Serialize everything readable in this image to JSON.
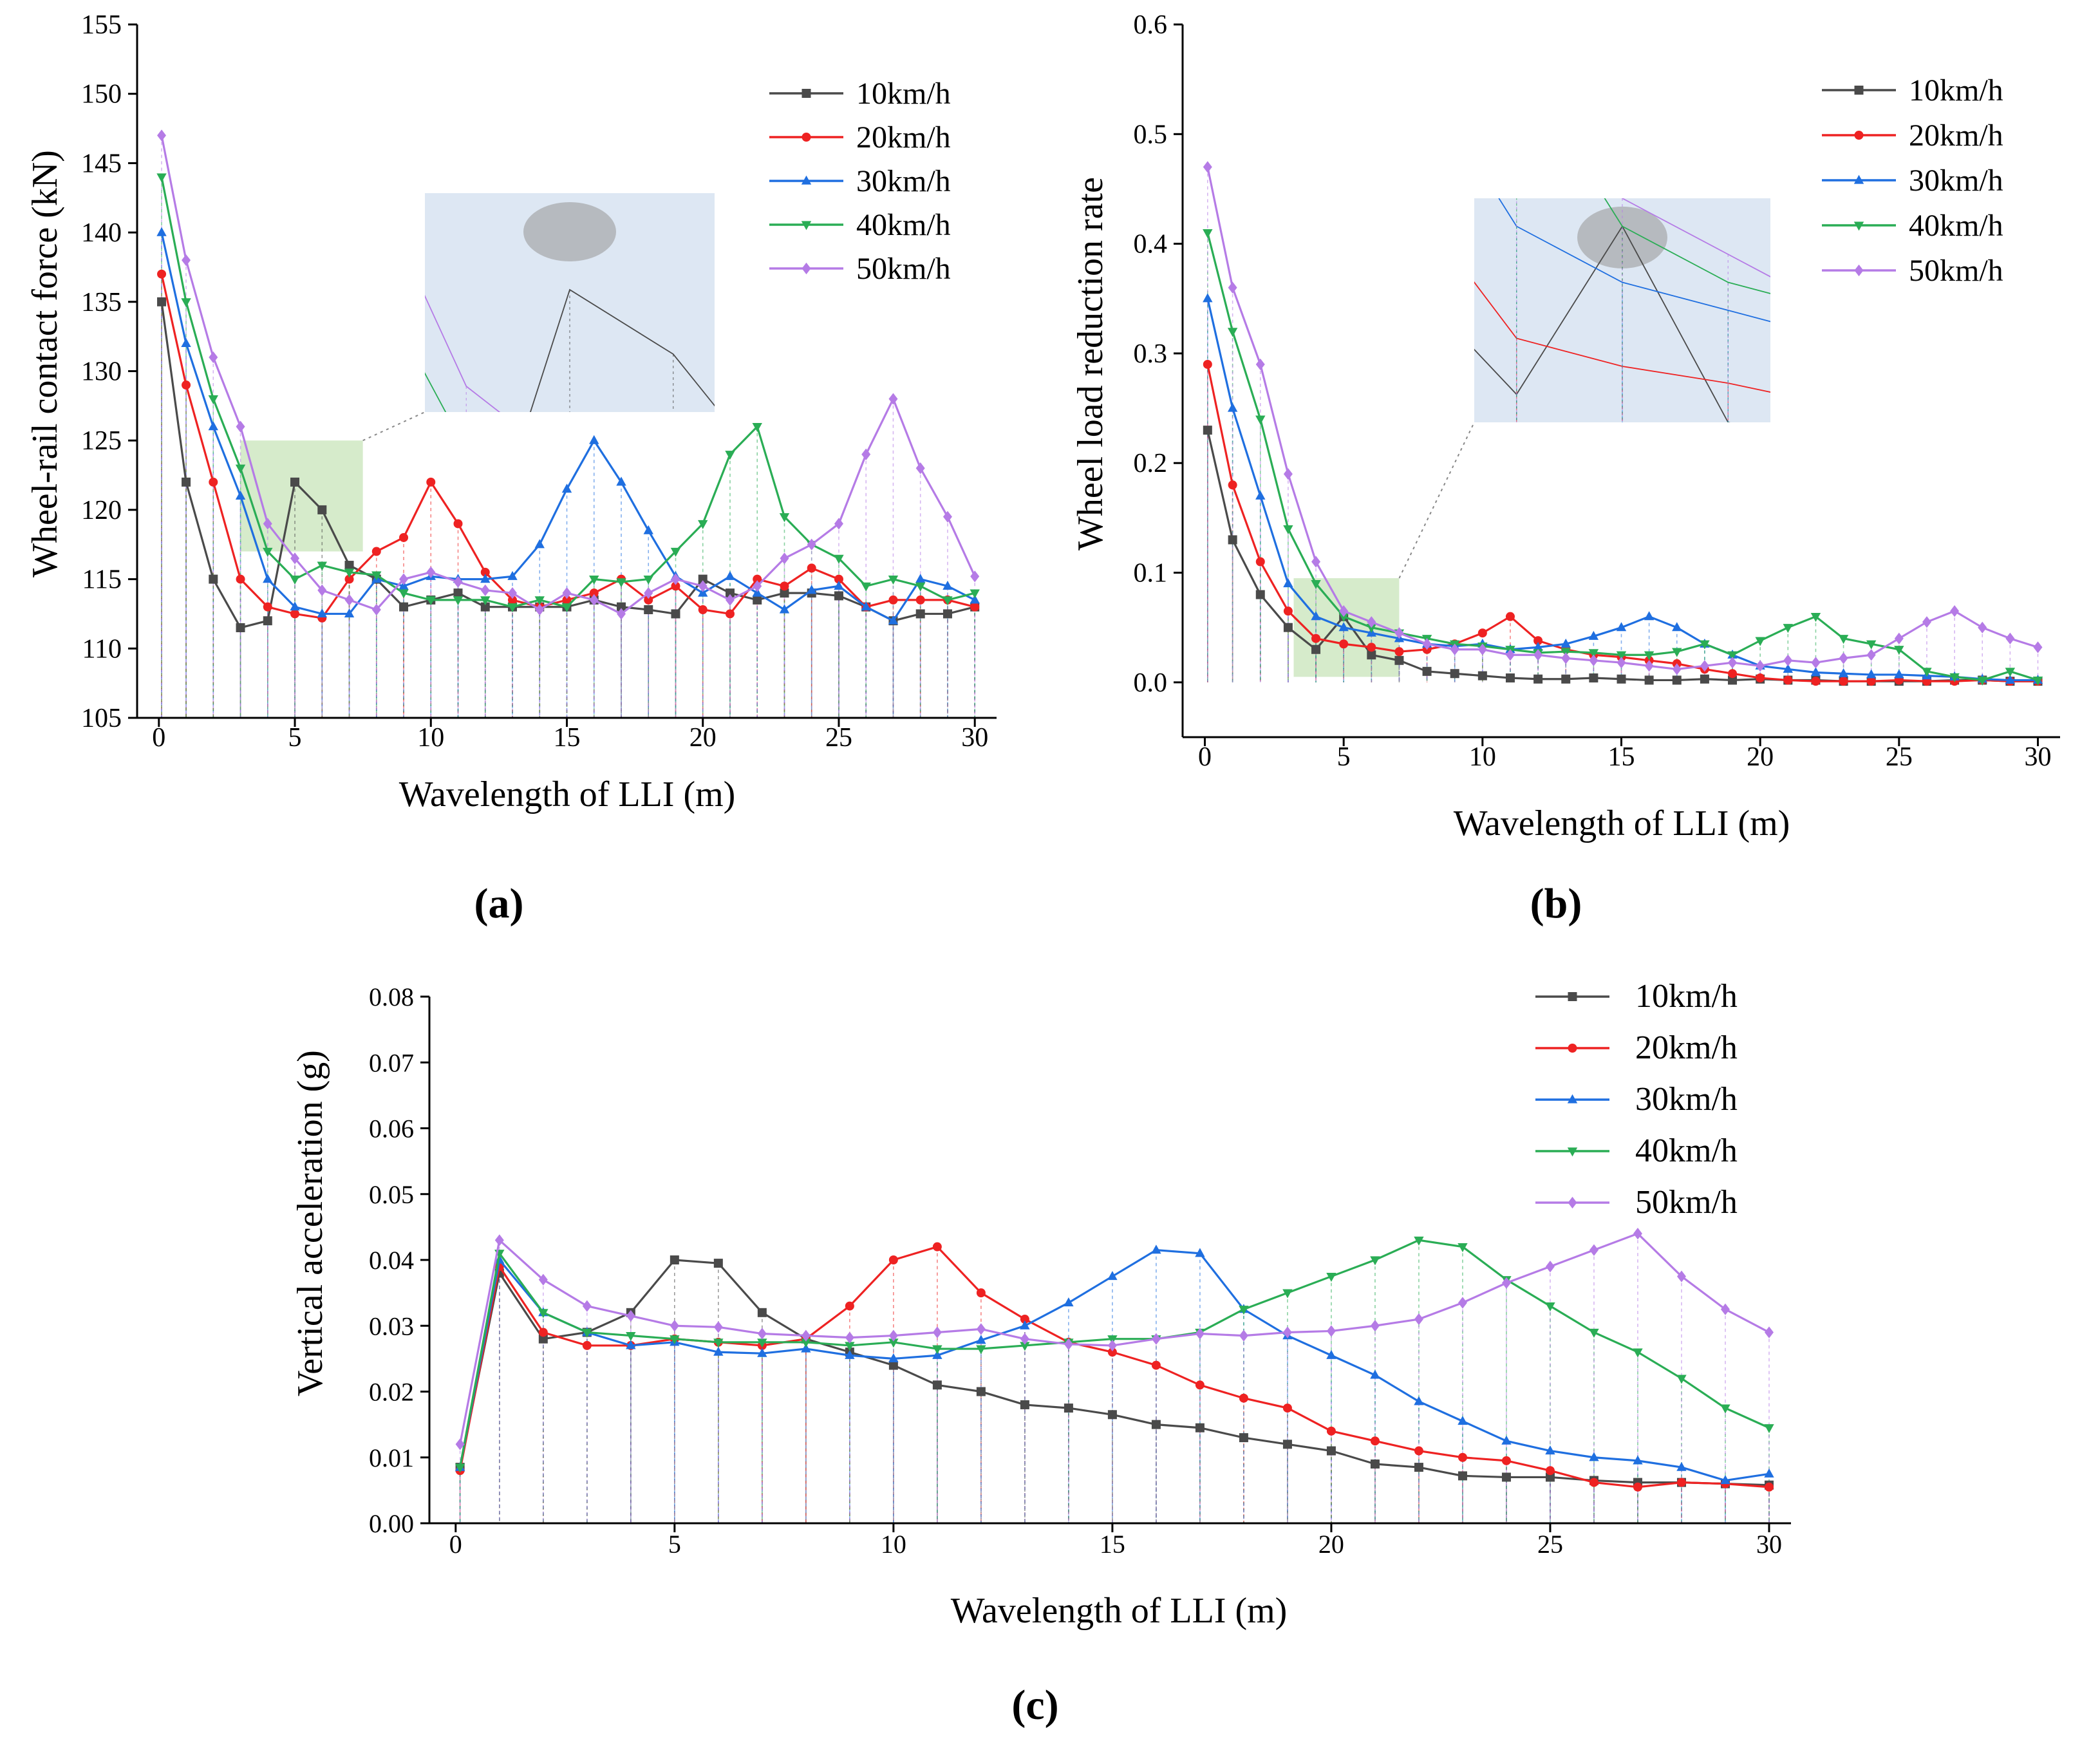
{
  "colors": {
    "10km/h": "#4a4a4a",
    "20km/h": "#ee2222",
    "30km/h": "#1f6fe0",
    "40km/h": "#2aad55",
    "50km/h": "#b57be6",
    "inset_bg": "#dde7f3",
    "highlight_green": "#cfe8c2",
    "oval": "#9d9d9d"
  },
  "chart_data": [
    {
      "type": "line",
      "panel_label": "(a)",
      "xlabel": "Wavelength of LLI (m)",
      "ylabel": "Wheel-rail contact force (kN)",
      "xlim": [
        -0.8,
        30.8
      ],
      "ylim": [
        105,
        155
      ],
      "xticks": [
        "0",
        "5",
        "10",
        "15",
        "20",
        "25",
        "30"
      ],
      "yticks": [
        "105",
        "110",
        "115",
        "120",
        "125",
        "130",
        "135",
        "140",
        "145",
        "150",
        "155"
      ],
      "legend": [
        "10km/h",
        "20km/h",
        "30km/h",
        "40km/h",
        "50km/h"
      ],
      "x": [
        0.1,
        1,
        2,
        3,
        4,
        5,
        6,
        7,
        8,
        9,
        10,
        11,
        12,
        13,
        14,
        15,
        16,
        17,
        18,
        19,
        20,
        21,
        22,
        23,
        24,
        25,
        26,
        27,
        28,
        29,
        30
      ],
      "series": [
        {
          "name": "10km/h",
          "marker": "square",
          "values": [
            135,
            122,
            115,
            111.5,
            112,
            122,
            120,
            116,
            115,
            113,
            113.5,
            114,
            113,
            113,
            113,
            113,
            113.5,
            113,
            112.8,
            112.5,
            115,
            114,
            113.5,
            114,
            114,
            113.8,
            113,
            112,
            112.5,
            112.5,
            113
          ]
        },
        {
          "name": "20km/h",
          "marker": "circle",
          "values": [
            137,
            129,
            122,
            115,
            113,
            112.5,
            112.2,
            115,
            117,
            118,
            122,
            119,
            115.5,
            113.5,
            113,
            113.5,
            114,
            115,
            113.5,
            114.5,
            112.8,
            112.5,
            115,
            114.5,
            115.8,
            115,
            113,
            113.5,
            113.5,
            113.5,
            113
          ]
        },
        {
          "name": "30km/h",
          "marker": "triangle-up",
          "values": [
            140,
            132,
            126,
            121,
            115,
            113,
            112.5,
            112.5,
            115,
            114.5,
            115.2,
            115,
            115,
            115.2,
            117.5,
            121.5,
            125,
            122,
            118.5,
            115.2,
            114,
            115.2,
            114,
            112.8,
            114.2,
            114.5,
            113,
            112,
            115,
            114.5,
            113.5
          ]
        },
        {
          "name": "40km/h",
          "marker": "triangle-down",
          "values": [
            144,
            135,
            128,
            123,
            117,
            115,
            116,
            115.5,
            115.3,
            114,
            113.5,
            113.5,
            113.5,
            113,
            113.5,
            113,
            115,
            114.8,
            115,
            117,
            119,
            124,
            126,
            119.5,
            117.5,
            116.5,
            114.5,
            115,
            114.5,
            113.5,
            114
          ]
        },
        {
          "name": "50km/h",
          "marker": "diamond",
          "values": [
            147,
            138,
            131,
            126,
            119,
            116.5,
            114.2,
            113.5,
            112.8,
            115,
            115.5,
            114.8,
            114.2,
            114,
            112.8,
            114,
            113.5,
            112.5,
            114,
            115,
            114.5,
            113.5,
            114.5,
            116.5,
            117.5,
            119,
            124,
            128,
            123,
            119.5,
            115.2
          ]
        }
      ]
    },
    {
      "type": "line",
      "panel_label": "(b)",
      "xlabel": "Wavelength of LLI (m)",
      "ylabel": "Wheel load reduction rate",
      "xlim": [
        -0.8,
        30.8
      ],
      "ylim": [
        -0.05,
        0.6
      ],
      "xticks": [
        "0",
        "5",
        "10",
        "15",
        "20",
        "25",
        "30"
      ],
      "yticks": [
        "0.0",
        "0.1",
        "0.2",
        "0.3",
        "0.4",
        "0.5",
        "0.6"
      ],
      "legend": [
        "10km/h",
        "20km/h",
        "30km/h",
        "40km/h",
        "50km/h"
      ],
      "x": [
        0.1,
        1,
        2,
        3,
        4,
        5,
        6,
        7,
        8,
        9,
        10,
        11,
        12,
        13,
        14,
        15,
        16,
        17,
        18,
        19,
        20,
        21,
        22,
        23,
        24,
        25,
        26,
        27,
        28,
        29,
        30
      ],
      "series": [
        {
          "name": "10km/h",
          "marker": "square",
          "values": [
            0.23,
            0.13,
            0.08,
            0.05,
            0.03,
            0.06,
            0.025,
            0.02,
            0.01,
            0.008,
            0.006,
            0.004,
            0.003,
            0.003,
            0.004,
            0.003,
            0.002,
            0.002,
            0.003,
            0.002,
            0.003,
            0.002,
            0.002,
            0.001,
            0.001,
            0.001,
            0.001,
            0.002,
            0.002,
            0.001,
            0.001
          ]
        },
        {
          "name": "20km/h",
          "marker": "circle",
          "values": [
            0.29,
            0.18,
            0.11,
            0.065,
            0.04,
            0.035,
            0.032,
            0.028,
            0.03,
            0.035,
            0.045,
            0.06,
            0.038,
            0.03,
            0.025,
            0.023,
            0.02,
            0.017,
            0.012,
            0.008,
            0.004,
            0.002,
            0.001,
            0.001,
            0.001,
            0.002,
            0.001,
            0.001,
            0.002,
            0.001,
            0.001
          ]
        },
        {
          "name": "30km/h",
          "marker": "triangle-up",
          "values": [
            0.35,
            0.25,
            0.17,
            0.09,
            0.06,
            0.05,
            0.045,
            0.04,
            0.035,
            0.033,
            0.035,
            0.03,
            0.032,
            0.035,
            0.042,
            0.05,
            0.06,
            0.05,
            0.035,
            0.025,
            0.015,
            0.012,
            0.009,
            0.008,
            0.007,
            0.007,
            0.006,
            0.005,
            0.003,
            0.002,
            0.002
          ]
        },
        {
          "name": "40km/h",
          "marker": "triangle-down",
          "values": [
            0.41,
            0.32,
            0.24,
            0.14,
            0.09,
            0.06,
            0.05,
            0.045,
            0.04,
            0.035,
            0.033,
            0.03,
            0.027,
            0.028,
            0.027,
            0.025,
            0.025,
            0.028,
            0.035,
            0.025,
            0.038,
            0.05,
            0.06,
            0.04,
            0.035,
            0.03,
            0.01,
            0.005,
            0.002,
            0.01,
            0.002
          ]
        },
        {
          "name": "50km/h",
          "marker": "diamond",
          "values": [
            0.47,
            0.36,
            0.29,
            0.19,
            0.11,
            0.065,
            0.055,
            0.045,
            0.035,
            0.03,
            0.03,
            0.025,
            0.025,
            0.022,
            0.02,
            0.018,
            0.015,
            0.012,
            0.015,
            0.018,
            0.015,
            0.02,
            0.018,
            0.022,
            0.025,
            0.04,
            0.055,
            0.065,
            0.05,
            0.04,
            0.032
          ]
        }
      ]
    },
    {
      "type": "line",
      "panel_label": "(c)",
      "xlabel": "Wavelength of LLI (m)",
      "ylabel": "Vertical acceleration (g)",
      "xlim": [
        -0.6,
        30.5
      ],
      "ylim": [
        0,
        0.08
      ],
      "xticks": [
        "0",
        "5",
        "10",
        "15",
        "20",
        "25",
        "30"
      ],
      "yticks": [
        "0.00",
        "0.01",
        "0.02",
        "0.03",
        "0.04",
        "0.05",
        "0.06",
        "0.07",
        "0.08"
      ],
      "legend": [
        "10km/h",
        "20km/h",
        "30km/h",
        "40km/h",
        "50km/h"
      ],
      "x": [
        0.1,
        1,
        2,
        3,
        4,
        5,
        6,
        7,
        8,
        9,
        10,
        11,
        12,
        13,
        14,
        15,
        16,
        17,
        18,
        19,
        20,
        21,
        22,
        23,
        24,
        25,
        26,
        27,
        28,
        29,
        30
      ],
      "series": [
        {
          "name": "10km/h",
          "marker": "square",
          "values": [
            0.0085,
            0.038,
            0.028,
            0.029,
            0.032,
            0.04,
            0.0395,
            0.032,
            0.028,
            0.026,
            0.024,
            0.021,
            0.02,
            0.018,
            0.0175,
            0.0165,
            0.015,
            0.0145,
            0.013,
            0.012,
            0.011,
            0.009,
            0.0085,
            0.0072,
            0.007,
            0.007,
            0.0065,
            0.0062,
            0.0062,
            0.006,
            0.0058
          ]
        },
        {
          "name": "20km/h",
          "marker": "circle",
          "values": [
            0.008,
            0.039,
            0.029,
            0.027,
            0.027,
            0.028,
            0.0275,
            0.027,
            0.028,
            0.033,
            0.04,
            0.042,
            0.035,
            0.031,
            0.0275,
            0.026,
            0.024,
            0.021,
            0.019,
            0.0175,
            0.014,
            0.0125,
            0.011,
            0.01,
            0.0095,
            0.008,
            0.0062,
            0.0055,
            0.0062,
            0.006,
            0.0055
          ]
        },
        {
          "name": "30km/h",
          "marker": "triangle-up",
          "values": [
            0.0085,
            0.04,
            0.032,
            0.029,
            0.027,
            0.0275,
            0.026,
            0.0258,
            0.0265,
            0.0255,
            0.025,
            0.0255,
            0.0278,
            0.03,
            0.0335,
            0.0375,
            0.0415,
            0.041,
            0.0325,
            0.0285,
            0.0255,
            0.0225,
            0.0185,
            0.0155,
            0.0125,
            0.011,
            0.01,
            0.0095,
            0.0085,
            0.0065,
            0.0075
          ]
        },
        {
          "name": "40km/h",
          "marker": "triangle-down",
          "values": [
            0.0085,
            0.041,
            0.032,
            0.029,
            0.0285,
            0.028,
            0.0275,
            0.0275,
            0.0275,
            0.027,
            0.0275,
            0.0265,
            0.0265,
            0.027,
            0.0275,
            0.028,
            0.028,
            0.029,
            0.0325,
            0.035,
            0.0375,
            0.04,
            0.043,
            0.042,
            0.037,
            0.033,
            0.029,
            0.026,
            0.022,
            0.0175,
            0.0145
          ]
        },
        {
          "name": "50km/h",
          "marker": "diamond",
          "values": [
            0.012,
            0.043,
            0.037,
            0.033,
            0.0315,
            0.03,
            0.0298,
            0.0288,
            0.0285,
            0.0282,
            0.0285,
            0.029,
            0.0295,
            0.028,
            0.0272,
            0.027,
            0.028,
            0.0288,
            0.0285,
            0.029,
            0.0292,
            0.03,
            0.031,
            0.0335,
            0.0365,
            0.039,
            0.0415,
            0.044,
            0.0375,
            0.0325,
            0.029
          ]
        }
      ]
    }
  ]
}
